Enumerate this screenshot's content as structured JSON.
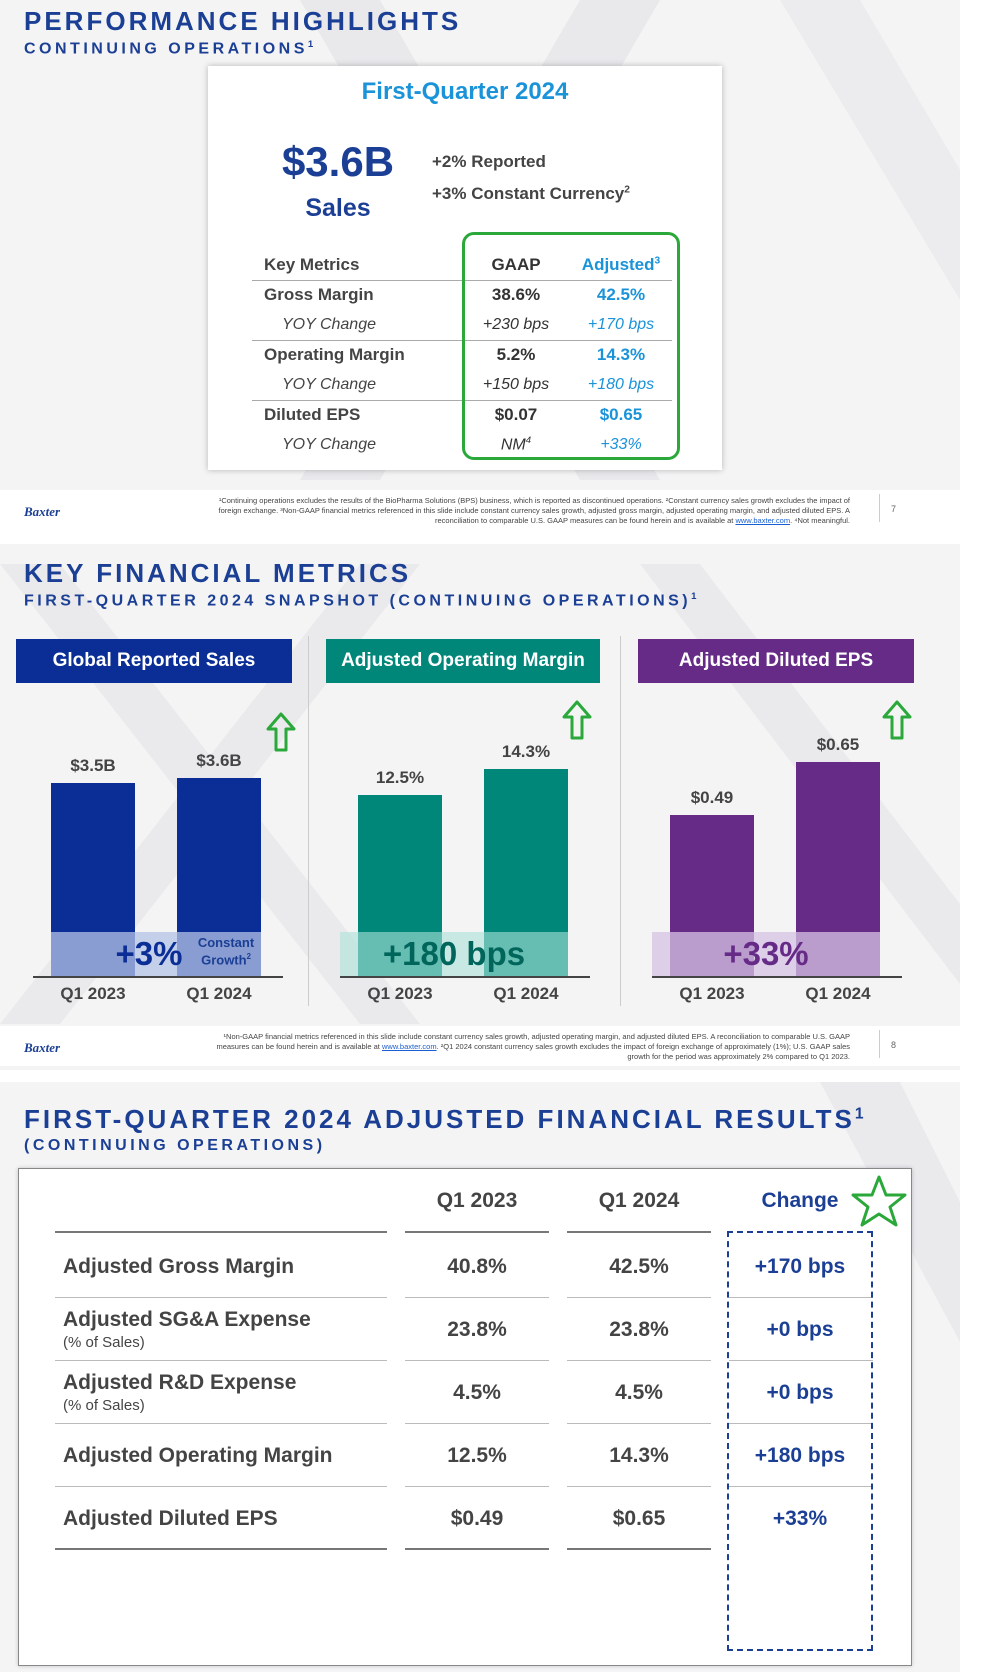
{
  "slide1": {
    "title": "PERFORMANCE HIGHLIGHTS",
    "subtitle": "CONTINUING OPERATIONS",
    "subtitle_sup": "1",
    "card_title": "First-Quarter 2024",
    "sales_value": "$3.6B",
    "sales_label": "Sales",
    "reported": "+2% Reported",
    "constant_currency": "+3% Constant Currency",
    "constant_currency_sup": "2",
    "table": {
      "header": {
        "label": "Key Metrics",
        "gaap": "GAAP",
        "adjusted": "Adjusted",
        "adjusted_sup": "3"
      },
      "rows": [
        {
          "label": "Gross Margin",
          "gaap": "38.6%",
          "adjusted": "42.5%"
        },
        {
          "label": "YOY Change",
          "gaap": "+230 bps",
          "adjusted": "+170 bps"
        },
        {
          "label": "Operating Margin",
          "gaap": "5.2%",
          "adjusted": "14.3%"
        },
        {
          "label": "YOY Change",
          "gaap": "+150 bps",
          "adjusted": "+180 bps"
        },
        {
          "label": "Diluted EPS",
          "gaap": "$0.07",
          "adjusted": "$0.65"
        },
        {
          "label": "YOY Change",
          "gaap": "NM",
          "gaap_sup": "4",
          "adjusted": "+33%"
        }
      ]
    },
    "logo": "Baxter",
    "footnote_1": "¹Continuing operations excludes the results of the BioPharma Solutions (BPS) business, which is reported as discontinued operations. ²Constant currency sales growth excludes the impact of foreign exchange. ³Non-GAAP financial metrics referenced in this slide include constant currency sales growth, adjusted gross margin, adjusted operating margin, and adjusted diluted EPS. A reconciliation to comparable U.S. GAAP measures can be found herein and is available at ",
    "footnote_link": "www.baxter.com",
    "footnote_2": ". ⁴Not meaningful.",
    "page": "7"
  },
  "slide2": {
    "title": "KEY FINANCIAL METRICS",
    "subtitle": "FIRST-QUARTER 2024 SNAPSHOT (CONTINUING OPERATIONS)",
    "subtitle_sup": "1",
    "logo": "Baxter",
    "footnote_1": "¹Non-GAAP financial metrics referenced in this slide include constant currency sales growth, adjusted operating margin, and adjusted diluted EPS. A reconciliation to comparable U.S. GAAP measures can be found herein and is available at ",
    "footnote_link": "www.baxter.com",
    "footnote_2": ". ²Q1 2024 constant currency sales growth excludes the impact of foreign exchange of approximately (1%); U.S. GAAP sales growth for the period was approximately 2% compared to Q1 2023.",
    "page": "8",
    "colors": {
      "sales": "#0a2d96",
      "margin": "#00877a",
      "eps": "#652b87",
      "arrow": "#2aa83a"
    }
  },
  "chart_data": [
    {
      "type": "bar",
      "title": "Global Reported Sales",
      "categories": [
        "Q1 2023",
        "Q1 2024"
      ],
      "values": [
        3.5,
        3.6
      ],
      "value_labels": [
        "$3.5B",
        "$3.6B"
      ],
      "change": "+3%",
      "change_note": "Constant Growth",
      "change_note_sup": "2"
    },
    {
      "type": "bar",
      "title": "Adjusted Operating Margin",
      "categories": [
        "Q1 2023",
        "Q1 2024"
      ],
      "values": [
        12.5,
        14.3
      ],
      "value_labels": [
        "12.5%",
        "14.3%"
      ],
      "change": "+180 bps"
    },
    {
      "type": "bar",
      "title": "Adjusted Diluted EPS",
      "categories": [
        "Q1 2023",
        "Q1 2024"
      ],
      "values": [
        0.49,
        0.65
      ],
      "value_labels": [
        "$0.49",
        "$0.65"
      ],
      "change": "+33%"
    }
  ],
  "slide3": {
    "title": "FIRST-QUARTER 2024 ADJUSTED FINANCIAL RESULTS",
    "title_sup": "1",
    "subtitle": "(CONTINUING OPERATIONS)",
    "columns": [
      "Q1 2023",
      "Q1 2024",
      "Change"
    ],
    "rows": [
      {
        "label": "Adjusted Gross Margin",
        "sub": "",
        "q1_2023": "40.8%",
        "q1_2024": "42.5%",
        "change": "+170 bps"
      },
      {
        "label": "Adjusted SG&A Expense",
        "sub": "(% of Sales)",
        "q1_2023": "23.8%",
        "q1_2024": "23.8%",
        "change": "+0 bps"
      },
      {
        "label": "Adjusted R&D Expense",
        "sub": "(% of Sales)",
        "q1_2023": "4.5%",
        "q1_2024": "4.5%",
        "change": "+0 bps"
      },
      {
        "label": "Adjusted Operating Margin",
        "sub": "",
        "q1_2023": "12.5%",
        "q1_2024": "14.3%",
        "change": "+180 bps"
      },
      {
        "label": "Adjusted Diluted EPS",
        "sub": "",
        "q1_2023": "$0.49",
        "q1_2024": "$0.65",
        "change": "+33%"
      }
    ]
  }
}
